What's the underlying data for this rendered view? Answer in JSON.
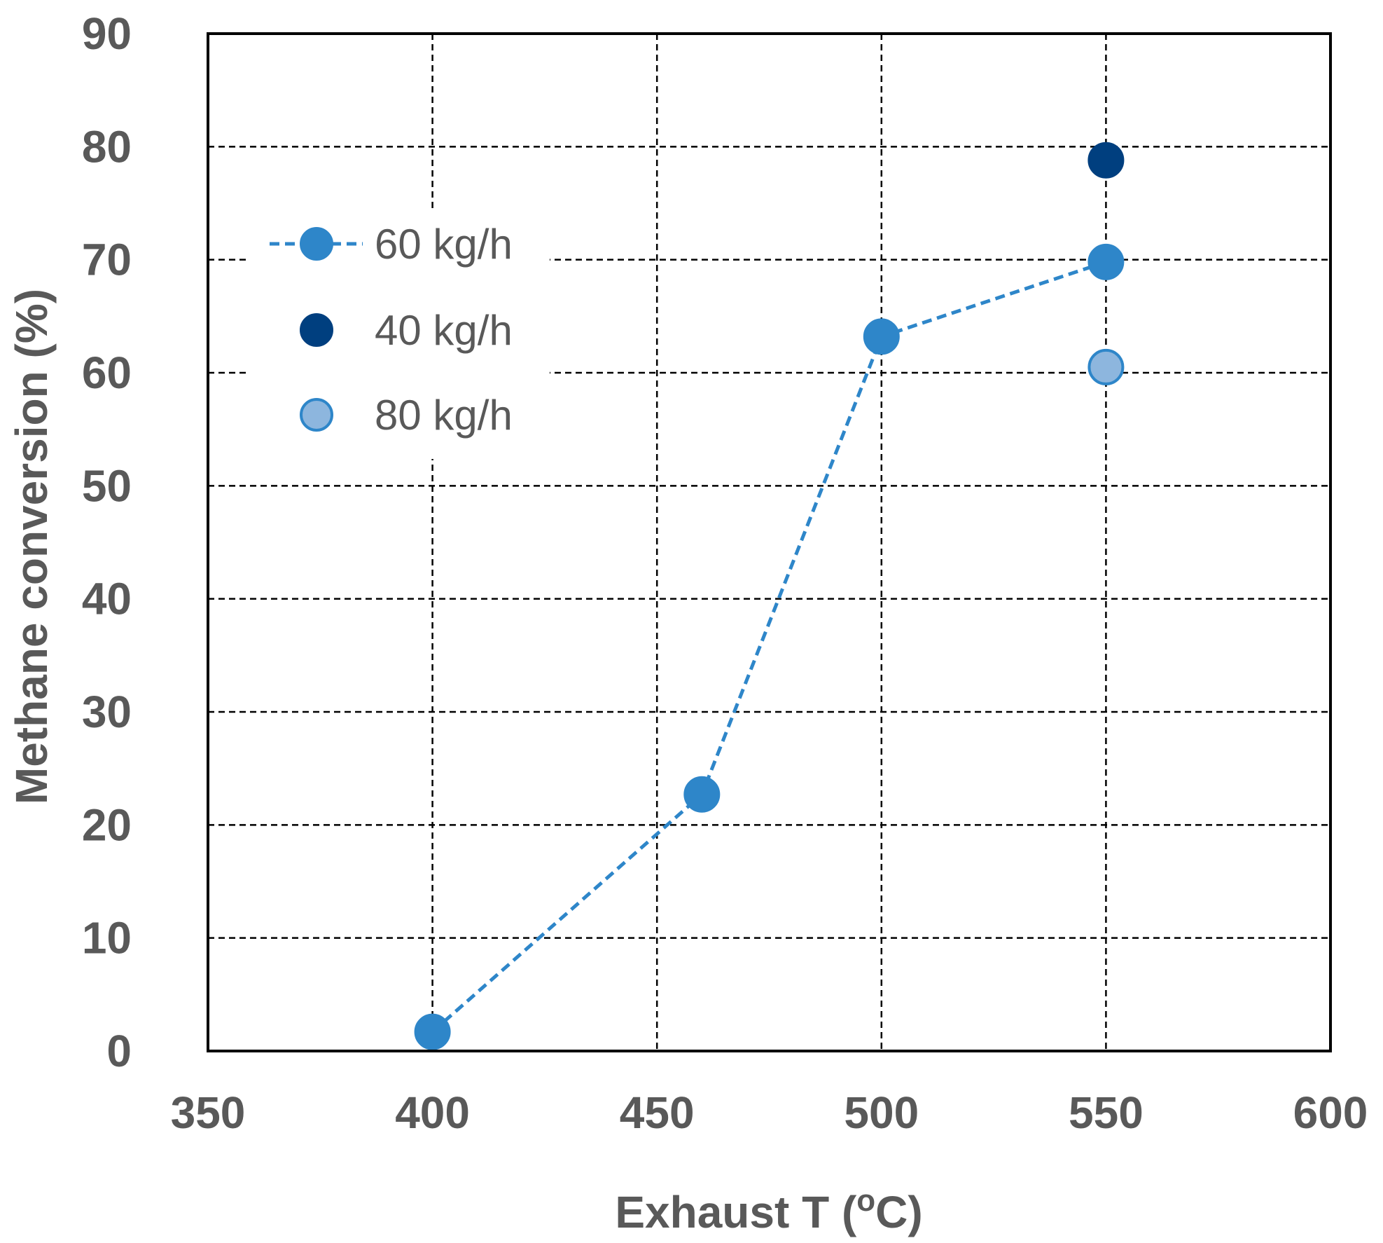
{
  "chart_data": {
    "type": "scatter",
    "xlabel": "Exhaust T (",
    "xlabel_sup": "o",
    "xlabel_suffix": "C)",
    "ylabel": "Methane conversion (%)",
    "xlim": [
      350,
      600
    ],
    "ylim": [
      0,
      90
    ],
    "x_ticks": [
      "350",
      "400",
      "450",
      "500",
      "550",
      "600"
    ],
    "y_ticks": [
      "0",
      "10",
      "20",
      "30",
      "40",
      "50",
      "60",
      "70",
      "80",
      "90"
    ],
    "grid": true,
    "legend_position": "upper-left",
    "series": [
      {
        "name": "60 kg/h",
        "style": "line-dashed-markers",
        "color": "#2E86C9",
        "x": [
          400,
          460,
          500,
          550
        ],
        "y": [
          1.7,
          22.7,
          63.2,
          69.8
        ]
      },
      {
        "name": "40 kg/h",
        "style": "markers",
        "color": "#003F7F",
        "x": [
          550
        ],
        "y": [
          78.8
        ]
      },
      {
        "name": "80 kg/h",
        "style": "markers",
        "color": "#8DB6DE",
        "stroke": "#2E86C9",
        "x": [
          550
        ],
        "y": [
          60.5
        ]
      }
    ]
  }
}
